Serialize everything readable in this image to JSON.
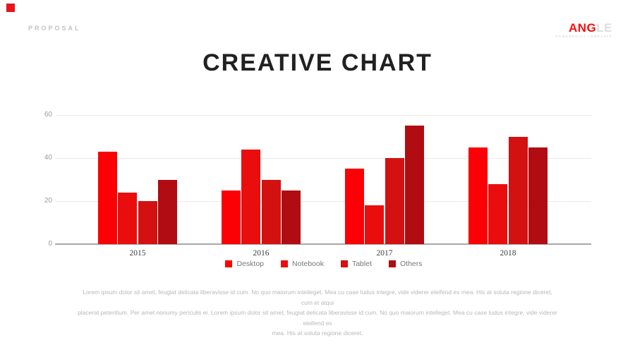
{
  "slide": {
    "eyebrow": "PROPOSAL",
    "logo": {
      "accent": "ANG",
      "rest": "LE",
      "tagline": "POWERPOINT TEMPLATE"
    },
    "title": "CREATIVE CHART",
    "body_lines": [
      "Lorem ipsum dolor sit amet, feugiat delicata liberavisse id cum. No quo maiorum intelleget. Mea cu case ludus integre, vide viderer eleifend ex mea. His at soluta regione diceret, cum et atqui",
      "placerat petentium. Per amet nonumy periculis ei. Lorem ipsum dolor sit amet, feugiat delicata liberavisse id cum. No quo maiorum intelleget. Mea cu case ludus integre, vide viderer eleifend ex",
      "mea. His at soluta regione diceret."
    ]
  },
  "colors": {
    "accent_red": "#f70d10",
    "corner_mark": "#e8141b",
    "title_text": "#212121",
    "muted_text": "#b8b8b8",
    "axis_line": "#a8a8a8",
    "gridline": "#e9e9e9"
  },
  "chart_data": {
    "type": "bar",
    "categories": [
      "2015",
      "2016",
      "2017",
      "2018"
    ],
    "series": [
      {
        "name": "Desktop",
        "color": "#fb0105",
        "values": [
          43,
          25,
          35,
          45
        ]
      },
      {
        "name": "Notebook",
        "color": "#ea0d0d",
        "values": [
          24,
          44,
          18,
          28
        ]
      },
      {
        "name": "Tablet",
        "color": "#d31111",
        "values": [
          20,
          30,
          40,
          50
        ]
      },
      {
        "name": "Others",
        "color": "#b00c12",
        "values": [
          30,
          25,
          55,
          45
        ]
      }
    ],
    "title": "",
    "xlabel": "",
    "ylabel": "",
    "ylim": [
      0,
      60
    ],
    "yticks": [
      0,
      20,
      40,
      60
    ],
    "grid": true,
    "legend_position": "bottom"
  }
}
